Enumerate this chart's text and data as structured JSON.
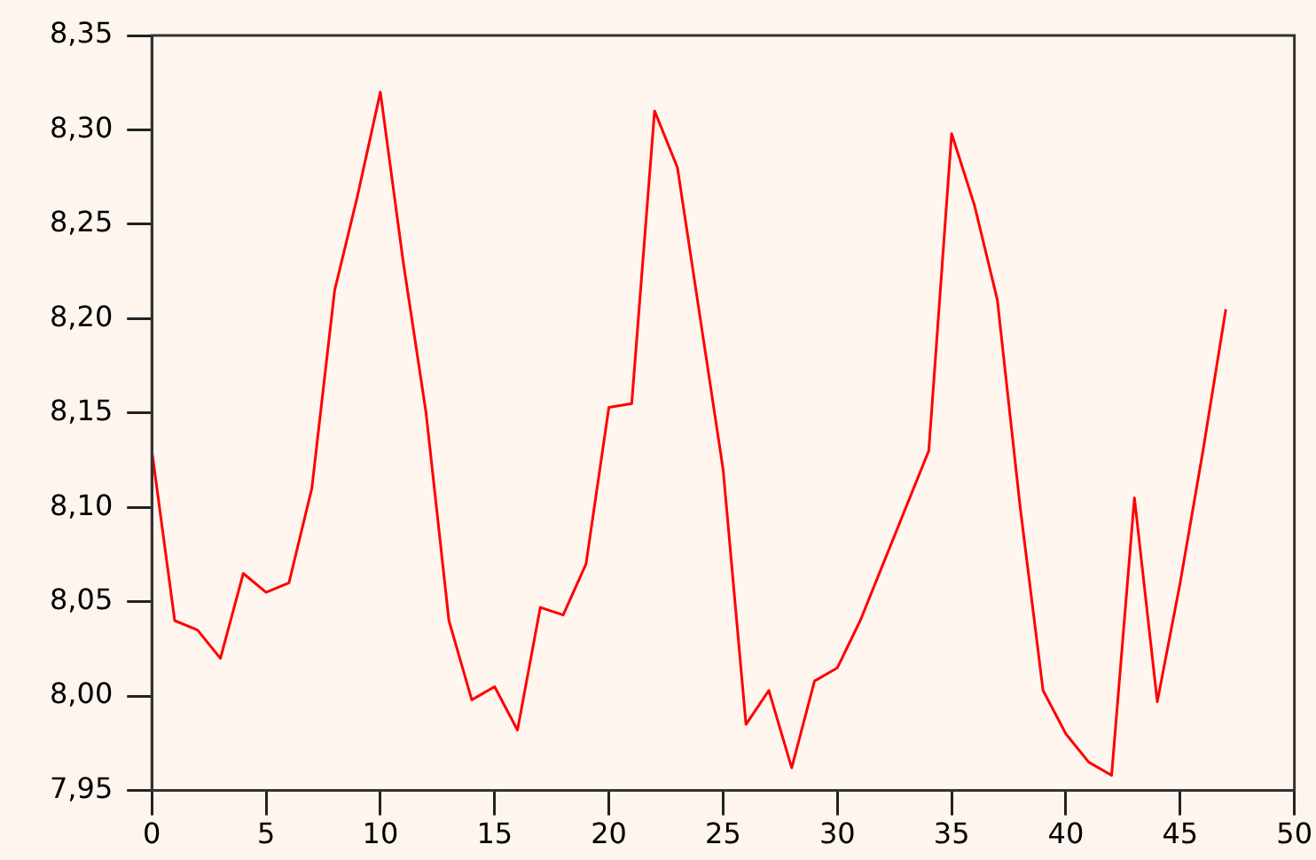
{
  "chart_data": {
    "type": "line",
    "x": [
      0,
      1,
      2,
      3,
      4,
      5,
      6,
      7,
      8,
      9,
      10,
      11,
      12,
      13,
      14,
      15,
      16,
      17,
      18,
      19,
      20,
      21,
      22,
      23,
      24,
      25,
      26,
      27,
      28,
      29,
      30,
      31,
      32,
      33,
      34,
      35,
      36,
      37,
      38,
      39,
      40,
      41,
      42,
      43,
      44,
      45,
      46,
      47
    ],
    "series": [
      {
        "color": "#ff0000",
        "values": [
          8.13,
          8.04,
          8.035,
          8.02,
          8.065,
          8.055,
          8.06,
          8.11,
          8.215,
          8.265,
          8.32,
          8.23,
          8.15,
          8.04,
          7.998,
          8.005,
          7.982,
          8.047,
          8.043,
          8.07,
          8.153,
          8.155,
          8.31,
          8.28,
          8.2,
          8.12,
          7.985,
          8.003,
          7.962,
          8.008,
          8.015,
          8.04,
          8.07,
          8.1,
          8.13,
          8.298,
          8.26,
          8.21,
          8.1,
          8.003,
          7.98,
          7.965,
          7.958,
          8.105,
          7.997,
          8.06,
          8.13,
          8.205
        ]
      }
    ],
    "xlim": [
      0,
      50
    ],
    "xticks": [
      0,
      5,
      10,
      15,
      20,
      25,
      30,
      35,
      40,
      45,
      50
    ],
    "ylim": [
      7.95,
      8.35
    ],
    "yticks": [
      {
        "value": 7.95,
        "label": "7,95"
      },
      {
        "value": 8.0,
        "label": "8,00"
      },
      {
        "value": 8.05,
        "label": "8,05"
      },
      {
        "value": 8.1,
        "label": "8,10"
      },
      {
        "value": 8.15,
        "label": "8,15"
      },
      {
        "value": 8.2,
        "label": "8,20"
      },
      {
        "value": 8.25,
        "label": "8,25"
      },
      {
        "value": 8.3,
        "label": "8,30"
      },
      {
        "value": 8.35,
        "label": "8,35"
      }
    ],
    "grid": false,
    "legend": false,
    "marker": "none",
    "line_style": "solid"
  }
}
